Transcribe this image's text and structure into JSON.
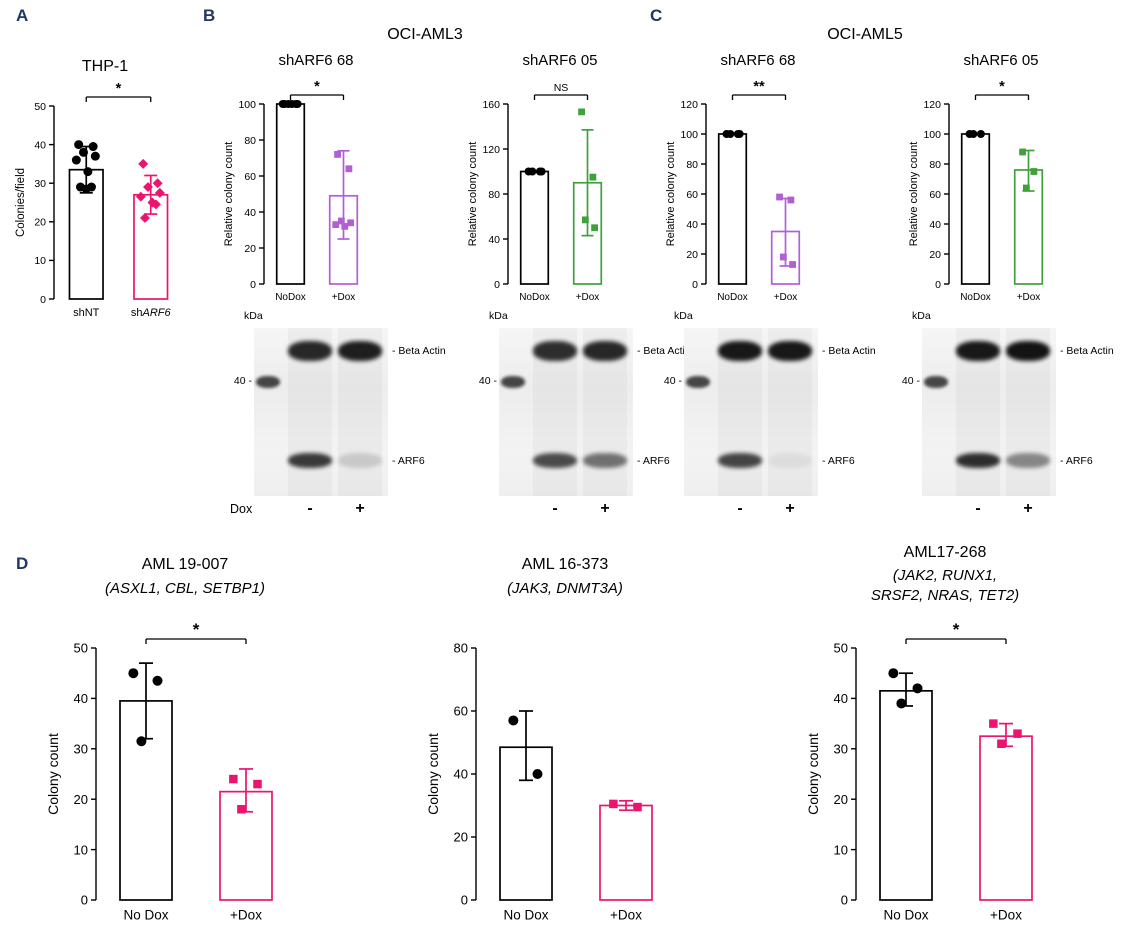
{
  "panels": {
    "a": "A",
    "b": "B",
    "c": "C",
    "d": "D"
  },
  "sections": {
    "b_title": "OCI-AML3",
    "c_title": "OCI-AML5"
  },
  "colors": {
    "black": "#000000",
    "pink": "#EB146E",
    "purple": "#B25FD6",
    "green": "#3FA03C",
    "panel_letter": "#1F3864"
  },
  "chart_data": [
    {
      "type": "bar",
      "title": "THP-1",
      "ylabel": "Colonies/field",
      "ylim": [
        0,
        50
      ],
      "yticks": [
        0,
        10,
        20,
        30,
        40,
        50
      ],
      "sig": "*",
      "groups": [
        {
          "label": "shNT",
          "label_parts": [
            [
              "shNT",
              false
            ]
          ],
          "color": "#000000",
          "marker": "circle",
          "bar": 33.5,
          "err": [
            27.5,
            39.5
          ],
          "points": [
            40,
            39.5,
            38,
            37,
            36,
            33,
            29,
            29,
            28.5
          ]
        },
        {
          "label": "shARF6",
          "label_parts": [
            [
              "sh",
              false
            ],
            [
              "ARF6",
              true
            ]
          ],
          "color": "#EB146E",
          "marker": "diamond",
          "bar": 27,
          "err": [
            22,
            32
          ],
          "points": [
            35,
            30,
            29,
            27.5,
            26.5,
            25,
            24.5,
            21
          ]
        }
      ]
    },
    {
      "type": "bar",
      "title": "shARF6 68",
      "ylabel": "Relative colony count",
      "ylim": [
        0,
        100
      ],
      "yticks": [
        0,
        20,
        40,
        60,
        80,
        100
      ],
      "sig": "*",
      "groups": [
        {
          "label": "NoDox",
          "label_parts": [
            [
              "NoDox",
              false
            ]
          ],
          "color": "#000000",
          "marker": "circle",
          "bar": 100,
          "err": null,
          "points": [
            100,
            100,
            100,
            100,
            100,
            100
          ]
        },
        {
          "label": "+Dox",
          "label_parts": [
            [
              "+Dox",
              false
            ]
          ],
          "color": "#B25FD6",
          "marker": "square",
          "bar": 49,
          "err": [
            25,
            74
          ],
          "points": [
            72,
            64,
            35,
            34,
            33,
            32
          ]
        }
      ]
    },
    {
      "type": "bar",
      "title": "shARF6 05",
      "ylabel": "Relative colony count",
      "ylim": [
        0,
        160
      ],
      "yticks": [
        0,
        40,
        80,
        120,
        160
      ],
      "sig": "NS",
      "groups": [
        {
          "label": "NoDox",
          "label_parts": [
            [
              "NoDox",
              false
            ]
          ],
          "color": "#000000",
          "marker": "circle",
          "bar": 100,
          "err": null,
          "points": [
            100,
            100,
            100,
            100
          ]
        },
        {
          "label": "+Dox",
          "label_parts": [
            [
              "+Dox",
              false
            ]
          ],
          "color": "#3FA03C",
          "marker": "square",
          "bar": 90,
          "err": [
            43,
            137
          ],
          "points": [
            153,
            95,
            57,
            50
          ]
        }
      ]
    },
    {
      "type": "bar",
      "title": "shARF6 68",
      "ylabel": "Relative colony count",
      "ylim": [
        0,
        120
      ],
      "yticks": [
        0,
        20,
        40,
        60,
        80,
        100,
        120
      ],
      "sig": "**",
      "groups": [
        {
          "label": "NoDox",
          "label_parts": [
            [
              "NoDox",
              false
            ]
          ],
          "color": "#000000",
          "marker": "circle",
          "bar": 100,
          "err": null,
          "points": [
            100,
            100,
            100,
            100
          ]
        },
        {
          "label": "+Dox",
          "label_parts": [
            [
              "+Dox",
              false
            ]
          ],
          "color": "#B25FD6",
          "marker": "square",
          "bar": 35,
          "err": [
            12,
            57
          ],
          "points": [
            58,
            56,
            18,
            13
          ]
        }
      ]
    },
    {
      "type": "bar",
      "title": "shARF6 05",
      "ylabel": "Relative colony count",
      "ylim": [
        0,
        120
      ],
      "yticks": [
        0,
        20,
        40,
        60,
        80,
        100,
        120
      ],
      "sig": "*",
      "groups": [
        {
          "label": "NoDox",
          "label_parts": [
            [
              "NoDox",
              false
            ]
          ],
          "color": "#000000",
          "marker": "circle",
          "bar": 100,
          "err": null,
          "points": [
            100,
            100,
            100
          ]
        },
        {
          "label": "+Dox",
          "label_parts": [
            [
              "+Dox",
              false
            ]
          ],
          "color": "#3FA03C",
          "marker": "square",
          "bar": 76,
          "err": [
            62,
            89
          ],
          "points": [
            88,
            75,
            64
          ]
        }
      ]
    },
    {
      "type": "bar",
      "title": "AML 19-007",
      "subtitle": "(ASXL1, CBL, SETBP1)",
      "ylabel": "Colony count",
      "ylim": [
        0,
        50
      ],
      "yticks": [
        0,
        10,
        20,
        30,
        40,
        50
      ],
      "sig": "*",
      "groups": [
        {
          "label": "No Dox",
          "label_parts": [
            [
              "No Dox",
              false
            ]
          ],
          "color": "#000000",
          "marker": "circle",
          "bar": 39.5,
          "err": [
            32,
            47
          ],
          "points": [
            45,
            43.5,
            31.5
          ]
        },
        {
          "label": "+Dox",
          "label_parts": [
            [
              "+Dox",
              false
            ]
          ],
          "color": "#EB146E",
          "marker": "square",
          "bar": 21.5,
          "err": [
            17.5,
            26
          ],
          "points": [
            24,
            23,
            18
          ]
        }
      ]
    },
    {
      "type": "bar",
      "title": "AML 16-373",
      "subtitle": "(JAK3, DNMT3A)",
      "ylabel": "Colony count",
      "ylim": [
        0,
        80
      ],
      "yticks": [
        0,
        20,
        40,
        60,
        80
      ],
      "sig": null,
      "groups": [
        {
          "label": "No Dox",
          "label_parts": [
            [
              "No Dox",
              false
            ]
          ],
          "color": "#000000",
          "marker": "circle",
          "bar": 48.5,
          "err": [
            38,
            60
          ],
          "points": [
            57,
            40
          ]
        },
        {
          "label": "+Dox",
          "label_parts": [
            [
              "+Dox",
              false
            ]
          ],
          "color": "#EB146E",
          "marker": "square",
          "bar": 30,
          "err": [
            28.5,
            31.5
          ],
          "points": [
            30.5,
            29.5
          ]
        }
      ]
    },
    {
      "type": "bar",
      "title": "AML17-268",
      "subtitle": "(JAK2, RUNX1,\nSRSF2, NRAS, TET2)",
      "ylabel": "Colony count",
      "ylim": [
        0,
        50
      ],
      "yticks": [
        0,
        10,
        20,
        30,
        40,
        50
      ],
      "sig": "*",
      "groups": [
        {
          "label": "No Dox",
          "label_parts": [
            [
              "No Dox",
              false
            ]
          ],
          "color": "#000000",
          "marker": "circle",
          "bar": 41.5,
          "err": [
            38.5,
            45
          ],
          "points": [
            45,
            42,
            39
          ]
        },
        {
          "label": "+Dox",
          "label_parts": [
            [
              "+Dox",
              false
            ]
          ],
          "color": "#EB146E",
          "marker": "square",
          "bar": 32.5,
          "err": [
            30.5,
            35
          ],
          "points": [
            35,
            33,
            31
          ]
        }
      ]
    }
  ],
  "blots": [
    {
      "kda": "kDa",
      "marker": "40",
      "labels": [
        "Beta Actin",
        "ARF6"
      ],
      "signs": [
        "-",
        "+"
      ],
      "dox": "Dox",
      "beta": [
        0.88,
        0.92
      ],
      "arf6": [
        0.8,
        0.15
      ]
    },
    {
      "kda": "kDa",
      "marker": "40",
      "labels": [
        "Beta Actin",
        "ARF6"
      ],
      "signs": [
        "-",
        "+"
      ],
      "beta": [
        0.85,
        0.88
      ],
      "arf6": [
        0.72,
        0.55
      ]
    },
    {
      "kda": "kDa",
      "marker": "40",
      "labels": [
        "Beta Actin",
        "ARF6"
      ],
      "signs": [
        "-",
        "+"
      ],
      "beta": [
        0.95,
        0.95
      ],
      "arf6": [
        0.75,
        0.06
      ]
    },
    {
      "kda": "kDa",
      "marker": "40",
      "labels": [
        "Beta Actin",
        "ARF6"
      ],
      "signs": [
        "-",
        "+"
      ],
      "beta": [
        0.95,
        0.97
      ],
      "arf6": [
        0.85,
        0.45
      ]
    }
  ]
}
